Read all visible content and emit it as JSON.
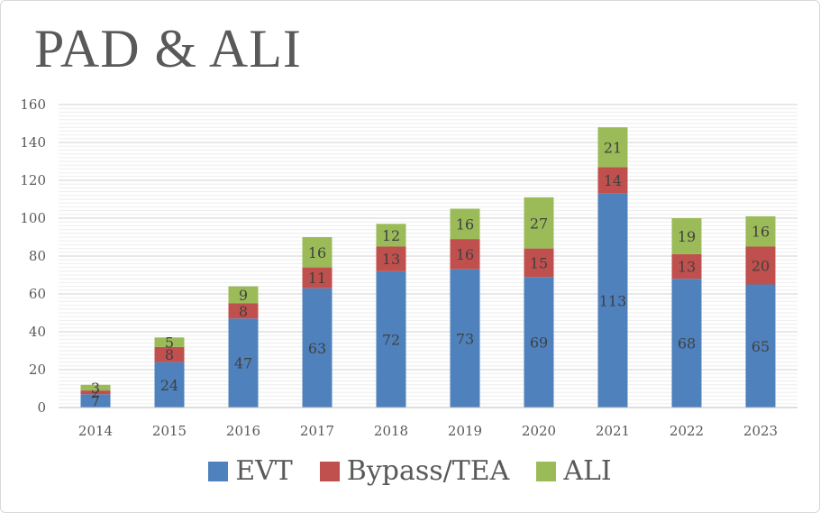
{
  "chart_data": {
    "type": "bar",
    "stacked": true,
    "title": "PAD & ALI",
    "categories": [
      "2014",
      "2015",
      "2016",
      "2017",
      "2018",
      "2019",
      "2020",
      "2021",
      "2022",
      "2023"
    ],
    "series": [
      {
        "name": "EVT",
        "color": "#4f81bd",
        "values": [
          7,
          24,
          47,
          63,
          72,
          73,
          69,
          113,
          68,
          65
        ]
      },
      {
        "name": "Bypass/TEA",
        "color": "#c0504d",
        "values": [
          2,
          8,
          8,
          11,
          13,
          16,
          15,
          14,
          13,
          20
        ]
      },
      {
        "name": "ALI",
        "color": "#9bbb59",
        "values": [
          3,
          5,
          9,
          16,
          12,
          16,
          27,
          21,
          19,
          16
        ]
      }
    ],
    "ylim": [
      0,
      160
    ],
    "yticks": [
      0,
      20,
      40,
      60,
      80,
      100,
      120,
      140,
      160
    ],
    "grid": true,
    "legend_position": "bottom"
  }
}
